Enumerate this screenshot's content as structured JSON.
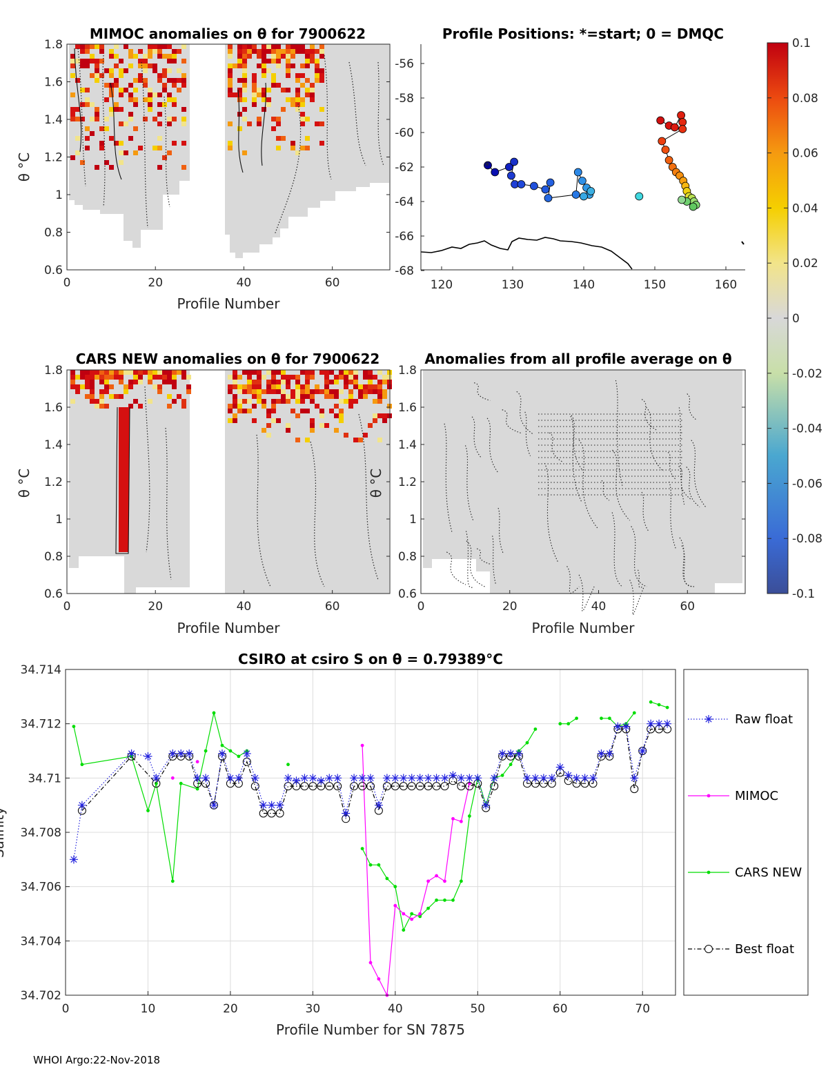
{
  "footer": "WHOI Argo:22-Nov-2018",
  "panels": {
    "mimoc": {
      "title": "MIMOC anomalies on θ  for 7900622",
      "xlabel": "Profile Number",
      "ylabel": "θ °C",
      "xticks": [
        "0",
        "20",
        "40",
        "60"
      ],
      "yticks": [
        "0.6",
        "0.8",
        "1",
        "1.2",
        "1.4",
        "1.6",
        "1.8"
      ]
    },
    "positions": {
      "title": "Profile Positions: *=start; 0 = DMQC",
      "xticks": [
        "120",
        "130",
        "140",
        "150",
        "160"
      ],
      "yticks": [
        "-56",
        "-58",
        "-60",
        "-62",
        "-64",
        "-66",
        "-68"
      ]
    },
    "cars": {
      "title": "CARS NEW anomalies on θ for 7900622",
      "xlabel": "Profile Number",
      "ylabel": "θ °C",
      "xticks": [
        "0",
        "20",
        "40",
        "60"
      ],
      "yticks": [
        "0.6",
        "0.8",
        "1",
        "1.2",
        "1.4",
        "1.6",
        "1.8"
      ]
    },
    "average": {
      "title": "Anomalies from all profile average on θ",
      "xlabel": "Profile Number",
      "ylabel": "θ °C",
      "xticks": [
        "0",
        "20",
        "40",
        "60"
      ],
      "yticks": [
        "0.6",
        "0.8",
        "1",
        "1.2",
        "1.4",
        "1.6",
        "1.8"
      ]
    },
    "colorbar": {
      "ticks": [
        "0.1",
        "0.08",
        "0.06",
        "0.04",
        "0.02",
        "0",
        "-0.02",
        "-0.04",
        "-0.06",
        "-0.08",
        "-0.1"
      ]
    }
  },
  "chart_data": {
    "type": "line",
    "title": "CSIRO at csiro S on θ = 0.79389°C",
    "xlabel": "Profile Number for SN 7875",
    "ylabel": "Salinity",
    "xlim": [
      0,
      74
    ],
    "ylim": [
      34.702,
      34.714
    ],
    "xticks": [
      "0",
      "10",
      "20",
      "30",
      "40",
      "50",
      "60",
      "70"
    ],
    "yticks": [
      "34.714",
      "34.712",
      "34.71",
      "34.708",
      "34.706",
      "34.704",
      "34.702"
    ],
    "legend": [
      "Raw float",
      "MIMOC",
      "CARS NEW",
      "Best float"
    ],
    "legend_position": "outside-right",
    "colors": {
      "raw": "#2222dd",
      "mimoc": "#ff00ff",
      "cars": "#00dd00",
      "best": "#000000"
    },
    "series": [
      {
        "name": "Raw float",
        "x": [
          1,
          2,
          8,
          10,
          11,
          13,
          14,
          15,
          16,
          17,
          18,
          19,
          20,
          21,
          22,
          23,
          24,
          25,
          26,
          27,
          28,
          29,
          30,
          31,
          32,
          33,
          34,
          35,
          36,
          37,
          38,
          39,
          40,
          41,
          42,
          43,
          44,
          45,
          46,
          47,
          48,
          49,
          50,
          51,
          52,
          53,
          54,
          55,
          56,
          57,
          58,
          59,
          60,
          61,
          62,
          63,
          64,
          65,
          66,
          67,
          68,
          69,
          70,
          71,
          72,
          73
        ],
        "y": [
          34.707,
          34.709,
          34.7109,
          34.7108,
          34.71,
          34.7109,
          34.7109,
          34.7109,
          34.71,
          34.71,
          34.709,
          34.7109,
          34.71,
          34.71,
          34.7109,
          34.71,
          34.709,
          34.709,
          34.709,
          34.71,
          34.7099,
          34.71,
          34.71,
          34.7099,
          34.71,
          34.71,
          34.7087,
          34.71,
          34.71,
          34.71,
          34.709,
          34.71,
          34.71,
          34.71,
          34.71,
          34.71,
          34.71,
          34.71,
          34.71,
          34.7101,
          34.71,
          34.71,
          34.71,
          34.709,
          34.71,
          34.7109,
          34.7109,
          34.7109,
          34.71,
          34.71,
          34.71,
          34.71,
          34.7104,
          34.7101,
          34.71,
          34.71,
          34.71,
          34.7109,
          34.7109,
          34.7119,
          34.7119,
          34.71,
          34.711,
          34.712,
          34.712,
          34.712
        ]
      },
      {
        "name": "Best float",
        "x": [
          2,
          8,
          11,
          13,
          14,
          15,
          16,
          17,
          18,
          19,
          20,
          21,
          22,
          23,
          24,
          25,
          26,
          27,
          28,
          29,
          30,
          31,
          32,
          33,
          34,
          35,
          36,
          37,
          38,
          39,
          40,
          41,
          42,
          43,
          44,
          45,
          46,
          47,
          48,
          49,
          50,
          51,
          52,
          53,
          54,
          55,
          56,
          57,
          58,
          59,
          60,
          61,
          62,
          63,
          64,
          65,
          66,
          67,
          68,
          69,
          70,
          71,
          72,
          73
        ],
        "y": [
          34.7088,
          34.7108,
          34.7098,
          34.7108,
          34.7108,
          34.7108,
          34.7098,
          34.7098,
          34.709,
          34.7108,
          34.7098,
          34.7098,
          34.7106,
          34.7097,
          34.7087,
          34.7087,
          34.7087,
          34.7097,
          34.7097,
          34.7097,
          34.7097,
          34.7097,
          34.7097,
          34.7097,
          34.7085,
          34.7097,
          34.7097,
          34.7097,
          34.7088,
          34.7097,
          34.7097,
          34.7097,
          34.7097,
          34.7097,
          34.7097,
          34.7097,
          34.7097,
          34.7099,
          34.7097,
          34.7097,
          34.7098,
          34.7089,
          34.7097,
          34.7108,
          34.7108,
          34.7108,
          34.7098,
          34.7098,
          34.7098,
          34.7098,
          34.7102,
          34.7099,
          34.7098,
          34.7098,
          34.7098,
          34.7108,
          34.7108,
          34.7118,
          34.7118,
          34.7096,
          34.711,
          34.7118,
          34.7118,
          34.7118
        ]
      },
      {
        "name": "MIMOC",
        "segments": [
          {
            "x": [
              13
            ],
            "y": [
              34.71
            ]
          },
          {
            "x": [
              16
            ],
            "y": [
              34.7106
            ]
          },
          {
            "x": [
              36,
              37,
              38,
              39,
              40,
              41,
              42,
              43,
              44,
              45,
              46,
              47,
              48,
              49
            ],
            "y": [
              34.7112,
              34.7032,
              34.7026,
              34.702,
              34.7053,
              34.705,
              34.7048,
              34.705,
              34.7062,
              34.7064,
              34.7062,
              34.7085,
              34.7084,
              34.7098
            ]
          }
        ]
      },
      {
        "name": "CARS NEW",
        "segments": [
          {
            "x": [
              1,
              2,
              8,
              10,
              11,
              13,
              14,
              16,
              17,
              18,
              19,
              20,
              21,
              22
            ],
            "y": [
              34.7119,
              34.7105,
              34.7108,
              34.7088,
              34.7098,
              34.7062,
              34.7098,
              34.7096,
              34.711,
              34.7124,
              34.7112,
              34.711,
              34.7108,
              34.711
            ]
          },
          {
            "x": [
              27
            ],
            "y": [
              34.7105
            ]
          },
          {
            "x": [
              36,
              37,
              38,
              39,
              40,
              41,
              42,
              43,
              44,
              45,
              46,
              47,
              48,
              49,
              50,
              51,
              52,
              53,
              54,
              55,
              56,
              57
            ],
            "y": [
              34.7074,
              34.7068,
              34.7068,
              34.7063,
              34.706,
              34.7044,
              34.705,
              34.7049,
              34.7052,
              34.7055,
              34.7055,
              34.7055,
              34.7062,
              34.7086,
              34.71,
              34.709,
              34.71,
              34.7101,
              34.7105,
              34.711,
              34.7113,
              34.7118
            ]
          },
          {
            "x": [
              60,
              61,
              62
            ],
            "y": [
              34.712,
              34.712,
              34.7122
            ]
          },
          {
            "x": [
              65,
              66,
              67,
              68,
              69
            ],
            "y": [
              34.7122,
              34.7122,
              34.7119,
              34.712,
              34.7124
            ]
          },
          {
            "x": [
              71,
              72,
              73
            ],
            "y": [
              34.7128,
              34.7127,
              34.7126
            ]
          }
        ]
      }
    ]
  }
}
